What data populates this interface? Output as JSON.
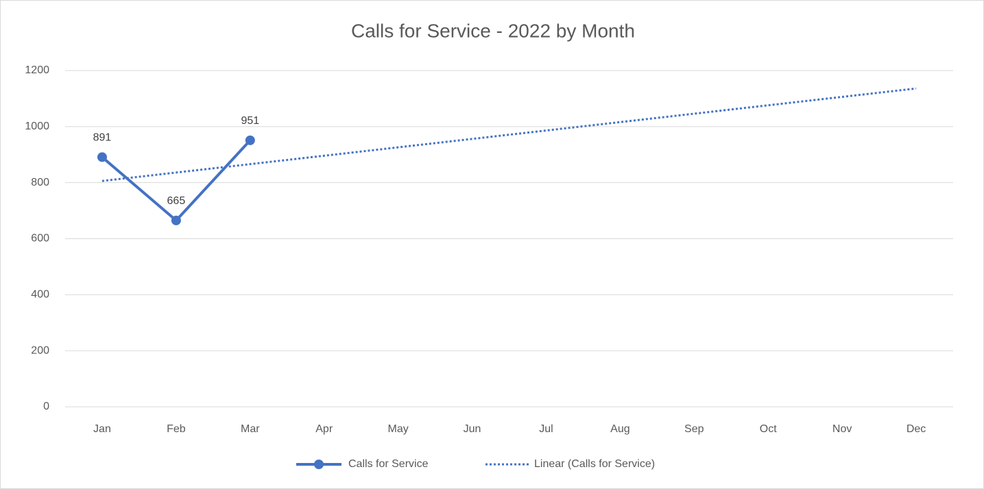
{
  "chart_data": {
    "type": "line",
    "title": "Calls for Service - 2022 by Month",
    "categories": [
      "Jan",
      "Feb",
      "Mar",
      "Apr",
      "May",
      "Jun",
      "Jul",
      "Aug",
      "Sep",
      "Oct",
      "Nov",
      "Dec"
    ],
    "series": [
      {
        "name": "Calls for Service",
        "color": "#4472c4",
        "style": "solid",
        "markers": true,
        "data_labels": true,
        "values": [
          891,
          665,
          951,
          null,
          null,
          null,
          null,
          null,
          null,
          null,
          null,
          null
        ]
      },
      {
        "name": "Linear (Calls for Service)",
        "color": "#4472c4",
        "style": "dotted",
        "markers": false,
        "data_labels": false,
        "values": [
          806,
          836,
          866,
          896,
          926,
          956,
          986,
          1016,
          1046,
          1076,
          1106,
          1136
        ]
      }
    ],
    "ylim": [
      0,
      1200
    ],
    "yticks": [
      0,
      200,
      400,
      600,
      800,
      1000,
      1200
    ],
    "grid": true,
    "legend": "bottom"
  }
}
